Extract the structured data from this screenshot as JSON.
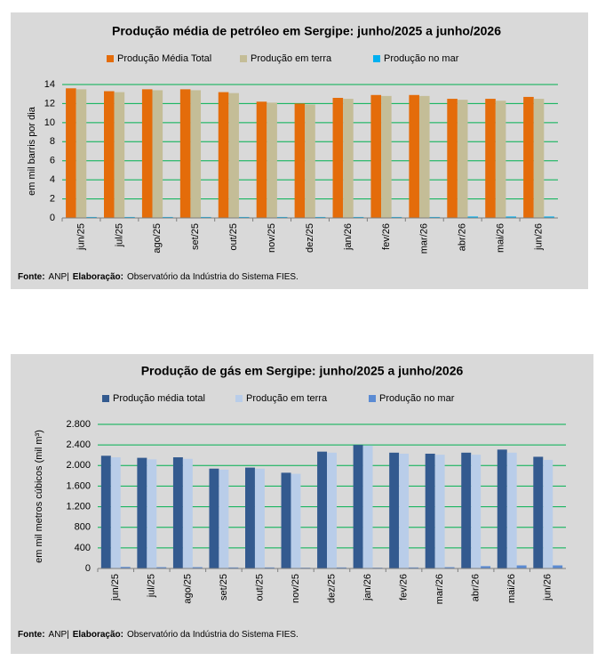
{
  "chart_data": [
    {
      "type": "bar",
      "title": "Produção média de petróleo em Sergipe: junho/2025 a junho/2026",
      "y_label": "em mil barris por dia",
      "categories": [
        "jun/25",
        "jul/25",
        "ago/25",
        "set/25",
        "out/25",
        "nov/25",
        "dez/25",
        "jan/26",
        "fev/26",
        "mar/26",
        "abr/26",
        "mai/26",
        "jun/26"
      ],
      "series": [
        {
          "name": "Produção Média Total",
          "color": "#e46c0a",
          "values": [
            13.6,
            13.3,
            13.5,
            13.5,
            13.2,
            12.2,
            12.0,
            12.6,
            12.9,
            12.9,
            12.5,
            12.5,
            12.7
          ]
        },
        {
          "name": "Produção em terra",
          "color": "#c4bd97",
          "values": [
            13.5,
            13.2,
            13.4,
            13.4,
            13.1,
            12.1,
            11.9,
            12.5,
            12.8,
            12.8,
            12.4,
            12.3,
            12.5
          ]
        },
        {
          "name": "Produção no mar",
          "color": "#00b0f0",
          "values": [
            0.1,
            0.1,
            0.1,
            0.1,
            0.1,
            0.1,
            0.1,
            0.1,
            0.1,
            0.1,
            0.15,
            0.15,
            0.15
          ]
        }
      ],
      "ylim": [
        0,
        14
      ],
      "yticks": [
        0,
        2,
        4,
        6,
        8,
        10,
        12,
        14
      ],
      "grid": true,
      "source_label": "Fonte:",
      "source": "ANP|",
      "credit_label": "Elaboração:",
      "credit": "Observatório da Indústria do Sistema FIES."
    },
    {
      "type": "bar",
      "title": "Produção de gás em Sergipe: junho/2025 a junho/2026",
      "y_label": "em mil metros cúbicos (mil m³)",
      "categories": [
        "jun/25",
        "jul/25",
        "ago/25",
        "set/25",
        "out/25",
        "nov/25",
        "dez/25",
        "jan/26",
        "fev/26",
        "mar/26",
        "abr/26",
        "mai/26",
        "jun/26"
      ],
      "series": [
        {
          "name": "Produção média total",
          "color": "#335a8f",
          "values": [
            2190,
            2150,
            2160,
            1940,
            1960,
            1860,
            2270,
            2400,
            2250,
            2230,
            2250,
            2310,
            2170
          ]
        },
        {
          "name": "Produção em terra",
          "color": "#b9cde9",
          "values": [
            2160,
            2120,
            2130,
            1920,
            1940,
            1840,
            2250,
            2390,
            2230,
            2210,
            2210,
            2250,
            2110
          ]
        },
        {
          "name": "Produção no mar",
          "color": "#5b8bd3",
          "values": [
            30,
            25,
            25,
            20,
            20,
            15,
            20,
            15,
            20,
            25,
            45,
            60,
            60
          ]
        }
      ],
      "ylim": [
        0,
        2800
      ],
      "yticks": [
        0,
        400,
        800,
        {
          "value": 1200,
          "label": "1.200"
        },
        {
          "value": 1600,
          "label": "1.600"
        },
        {
          "value": 2000,
          "label": "2.000"
        },
        {
          "value": 2400,
          "label": "2.400"
        },
        {
          "value": 2800,
          "label": "2.800"
        }
      ],
      "grid": true,
      "source_label": "Fonte:",
      "source": "ANP|",
      "credit_label": "Elaboração:",
      "credit": "Observatório da Indústria do Sistema FIES."
    }
  ]
}
